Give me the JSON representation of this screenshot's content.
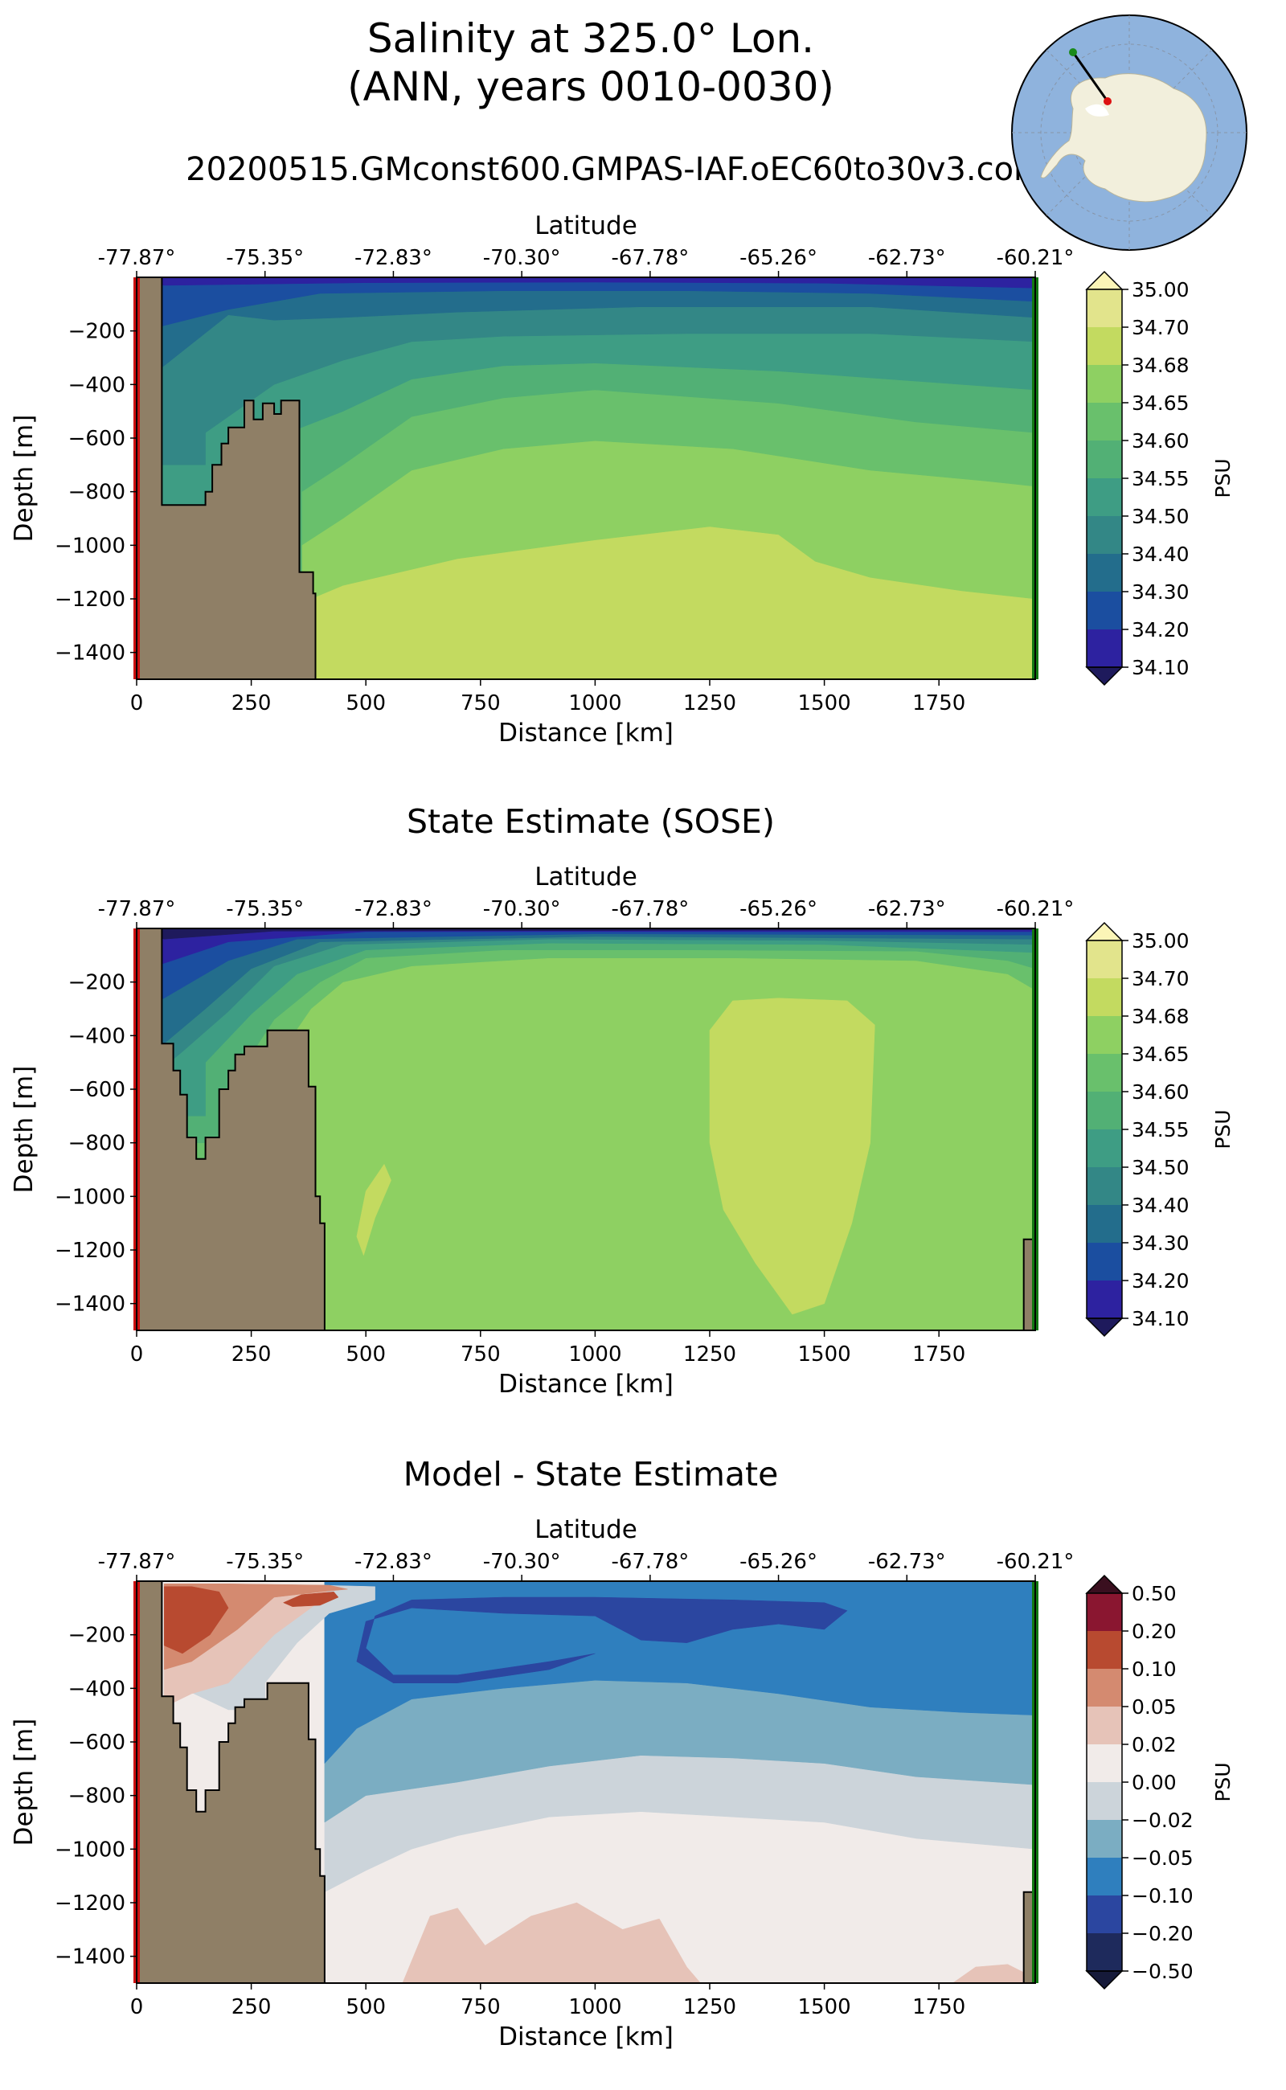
{
  "figure": {
    "title_line1": "Salinity at 325.0° Lon.",
    "title_line2": "(ANN, years 0010-0030)",
    "run_name": "20200515.GMconst600.GMPAS-IAF.oEC60to30v3.com"
  },
  "map_icon": "antarctic-inset-map",
  "chart_data": [
    {
      "type": "heatmap",
      "panel_title": "",
      "xlabel": "Distance [km]",
      "ylabel": "Depth [m]",
      "top_axis_label": "Latitude",
      "xlim": [
        0,
        1960
      ],
      "ylim": [
        -1500,
        0
      ],
      "x_ticks": [
        "0",
        "250",
        "500",
        "750",
        "1000",
        "1250",
        "1500",
        "1750"
      ],
      "y_ticks": [
        "−200",
        "−400",
        "−600",
        "−800",
        "−1000",
        "−1200",
        "−1400"
      ],
      "lat_ticks": [
        "-77.87°",
        "-75.35°",
        "-72.83°",
        "-70.30°",
        "-67.78°",
        "-65.26°",
        "-62.73°",
        "-60.21°"
      ],
      "colorbar_label": "PSU",
      "colorbar_ticks": [
        "35.00",
        "34.70",
        "34.68",
        "34.65",
        "34.60",
        "34.55",
        "34.50",
        "34.40",
        "34.30",
        "34.20",
        "34.10"
      ],
      "colorbar_colors": [
        "#fbf5b7",
        "#e2e48c",
        "#c3da60",
        "#8ed062",
        "#69c06c",
        "#52b075",
        "#3e9d84",
        "#338786",
        "#236d8c",
        "#1b4ea0",
        "#2d22a0",
        "#1e1a5c"
      ]
    },
    {
      "type": "heatmap",
      "panel_title": "State Estimate (SOSE)",
      "xlabel": "Distance [km]",
      "ylabel": "Depth [m]",
      "top_axis_label": "Latitude",
      "xlim": [
        0,
        1960
      ],
      "ylim": [
        -1500,
        0
      ],
      "x_ticks": [
        "0",
        "250",
        "500",
        "750",
        "1000",
        "1250",
        "1500",
        "1750"
      ],
      "y_ticks": [
        "−200",
        "−400",
        "−600",
        "−800",
        "−1000",
        "−1200",
        "−1400"
      ],
      "lat_ticks": [
        "-77.87°",
        "-75.35°",
        "-72.83°",
        "-70.30°",
        "-67.78°",
        "-65.26°",
        "-62.73°",
        "-60.21°"
      ],
      "colorbar_label": "PSU",
      "colorbar_ticks": [
        "35.00",
        "34.70",
        "34.68",
        "34.65",
        "34.60",
        "34.55",
        "34.50",
        "34.40",
        "34.30",
        "34.20",
        "34.10"
      ],
      "colorbar_colors": [
        "#fbf5b7",
        "#e2e48c",
        "#c3da60",
        "#8ed062",
        "#69c06c",
        "#52b075",
        "#3e9d84",
        "#338786",
        "#236d8c",
        "#1b4ea0",
        "#2d22a0",
        "#1e1a5c"
      ]
    },
    {
      "type": "heatmap",
      "panel_title": "Model - State Estimate",
      "xlabel": "Distance [km]",
      "ylabel": "Depth [m]",
      "top_axis_label": "Latitude",
      "xlim": [
        0,
        1960
      ],
      "ylim": [
        -1500,
        0
      ],
      "x_ticks": [
        "0",
        "250",
        "500",
        "750",
        "1000",
        "1250",
        "1500",
        "1750"
      ],
      "y_ticks": [
        "−200",
        "−400",
        "−600",
        "−800",
        "−1000",
        "−1200",
        "−1400"
      ],
      "lat_ticks": [
        "-77.87°",
        "-75.35°",
        "-72.83°",
        "-70.30°",
        "-67.78°",
        "-65.26°",
        "-62.73°",
        "-60.21°"
      ],
      "colorbar_label": "PSU",
      "colorbar_ticks": [
        "0.50",
        "0.20",
        "0.10",
        "0.05",
        "0.02",
        "0.00",
        "−0.02",
        "−0.05",
        "−0.10",
        "−0.20",
        "−0.50"
      ],
      "colorbar_colors": [
        "#3a0f1f",
        "#8a1630",
        "#b84a30",
        "#d48a70",
        "#e6c3b8",
        "#f1ebe9",
        "#ccd4da",
        "#7badc2",
        "#2f7fbe",
        "#2b46a0",
        "#1e2a5c",
        "#161a3a"
      ]
    }
  ],
  "colors": {
    "land": "#8f7f66",
    "start_marker": "#cc1111",
    "end_marker": "#117711"
  }
}
